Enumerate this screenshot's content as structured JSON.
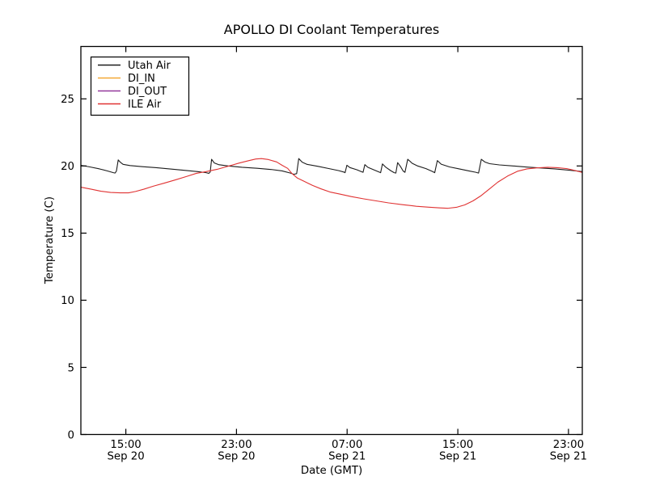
{
  "chart_data": {
    "type": "line",
    "title": "APOLLO DI Coolant Temperatures",
    "xlabel": "Date (GMT)",
    "ylabel": "Temperature (C)",
    "grid": false,
    "legend_position": "upper left",
    "x_unit": "hours since Sep 20 00:00 GMT",
    "xlim": [
      11.75,
      48
    ],
    "ylim": [
      0,
      28.9
    ],
    "y_ticks": [
      0,
      5,
      10,
      15,
      20,
      25
    ],
    "x_ticks": [
      {
        "t": 15,
        "time": "15:00",
        "date": "Sep 20"
      },
      {
        "t": 23,
        "time": "23:00",
        "date": "Sep 20"
      },
      {
        "t": 31,
        "time": "07:00",
        "date": "Sep 21"
      },
      {
        "t": 39,
        "time": "15:00",
        "date": "Sep 21"
      },
      {
        "t": 47,
        "time": "23:00",
        "date": "Sep 21"
      }
    ],
    "series": [
      {
        "name": "Utah Air",
        "color": "#1c1c1c",
        "opacity": 1,
        "points": [
          [
            11.75,
            20.05
          ],
          [
            12.4,
            19.93
          ],
          [
            13.1,
            19.78
          ],
          [
            13.7,
            19.62
          ],
          [
            14.1,
            19.5
          ],
          [
            14.22,
            19.47
          ],
          [
            14.32,
            19.62
          ],
          [
            14.45,
            20.45
          ],
          [
            14.6,
            20.28
          ],
          [
            14.8,
            20.12
          ],
          [
            15.3,
            20.03
          ],
          [
            16.2,
            19.95
          ],
          [
            17.2,
            19.87
          ],
          [
            18.3,
            19.77
          ],
          [
            19.3,
            19.67
          ],
          [
            20.2,
            19.58
          ],
          [
            20.8,
            19.5
          ],
          [
            21.0,
            19.45
          ],
          [
            21.1,
            19.55
          ],
          [
            21.2,
            20.5
          ],
          [
            21.4,
            20.22
          ],
          [
            21.7,
            20.1
          ],
          [
            22.4,
            20.0
          ],
          [
            23.4,
            19.9
          ],
          [
            24.5,
            19.83
          ],
          [
            25.5,
            19.74
          ],
          [
            26.3,
            19.63
          ],
          [
            26.9,
            19.47
          ],
          [
            27.15,
            19.38
          ],
          [
            27.35,
            19.43
          ],
          [
            27.5,
            20.55
          ],
          [
            27.75,
            20.28
          ],
          [
            28.1,
            20.12
          ],
          [
            28.9,
            19.97
          ],
          [
            29.7,
            19.8
          ],
          [
            30.4,
            19.65
          ],
          [
            30.75,
            19.55
          ],
          [
            30.85,
            19.5
          ],
          [
            30.98,
            20.05
          ],
          [
            31.2,
            19.88
          ],
          [
            31.7,
            19.72
          ],
          [
            32.05,
            19.57
          ],
          [
            32.15,
            19.53
          ],
          [
            32.28,
            20.1
          ],
          [
            32.5,
            19.9
          ],
          [
            32.95,
            19.7
          ],
          [
            33.3,
            19.55
          ],
          [
            33.42,
            19.5
          ],
          [
            33.55,
            20.15
          ],
          [
            33.8,
            19.9
          ],
          [
            34.15,
            19.65
          ],
          [
            34.4,
            19.5
          ],
          [
            34.52,
            19.47
          ],
          [
            34.65,
            20.25
          ],
          [
            34.85,
            19.97
          ],
          [
            35.05,
            19.62
          ],
          [
            35.18,
            19.53
          ],
          [
            35.38,
            20.5
          ],
          [
            35.7,
            20.2
          ],
          [
            36.1,
            20.0
          ],
          [
            36.7,
            19.8
          ],
          [
            37.15,
            19.6
          ],
          [
            37.33,
            19.5
          ],
          [
            37.52,
            20.4
          ],
          [
            37.8,
            20.13
          ],
          [
            38.4,
            19.93
          ],
          [
            39.1,
            19.78
          ],
          [
            39.8,
            19.63
          ],
          [
            40.3,
            19.53
          ],
          [
            40.5,
            19.47
          ],
          [
            40.7,
            20.5
          ],
          [
            40.95,
            20.3
          ],
          [
            41.3,
            20.17
          ],
          [
            42.0,
            20.08
          ],
          [
            43.0,
            20.0
          ],
          [
            44.0,
            19.92
          ],
          [
            45.0,
            19.85
          ],
          [
            46.0,
            19.78
          ],
          [
            46.9,
            19.7
          ],
          [
            47.5,
            19.64
          ],
          [
            48.0,
            19.58
          ]
        ]
      },
      {
        "name": "DI_IN",
        "color": "#f4a733",
        "opacity": 0.55,
        "points": [
          [
            11.75,
            0
          ],
          [
            48,
            0
          ]
        ]
      },
      {
        "name": "DI_OUT",
        "color": "#93389b",
        "opacity": 0.55,
        "points": [
          [
            11.75,
            0
          ],
          [
            48,
            0
          ]
        ]
      },
      {
        "name": "ILE Air",
        "color": "#e03232",
        "opacity": 1,
        "points": [
          [
            11.75,
            18.42
          ],
          [
            12.5,
            18.27
          ],
          [
            13.2,
            18.12
          ],
          [
            13.9,
            18.03
          ],
          [
            14.6,
            18.0
          ],
          [
            15.2,
            18.0
          ],
          [
            15.7,
            18.1
          ],
          [
            16.3,
            18.27
          ],
          [
            17.0,
            18.5
          ],
          [
            17.8,
            18.73
          ],
          [
            18.6,
            18.97
          ],
          [
            19.4,
            19.22
          ],
          [
            20.1,
            19.45
          ],
          [
            20.8,
            19.58
          ],
          [
            21.6,
            19.75
          ],
          [
            22.4,
            19.98
          ],
          [
            23.2,
            20.22
          ],
          [
            23.9,
            20.4
          ],
          [
            24.4,
            20.52
          ],
          [
            24.8,
            20.55
          ],
          [
            25.3,
            20.48
          ],
          [
            25.9,
            20.3
          ],
          [
            26.3,
            20.05
          ],
          [
            26.7,
            19.82
          ],
          [
            27.0,
            19.45
          ],
          [
            27.4,
            19.1
          ],
          [
            27.9,
            18.85
          ],
          [
            28.5,
            18.55
          ],
          [
            29.1,
            18.3
          ],
          [
            29.8,
            18.05
          ],
          [
            30.5,
            17.9
          ],
          [
            31.3,
            17.72
          ],
          [
            32.2,
            17.55
          ],
          [
            33.1,
            17.4
          ],
          [
            34.0,
            17.25
          ],
          [
            35.0,
            17.12
          ],
          [
            36.0,
            17.0
          ],
          [
            36.9,
            16.93
          ],
          [
            37.7,
            16.88
          ],
          [
            38.3,
            16.85
          ],
          [
            38.9,
            16.92
          ],
          [
            39.5,
            17.1
          ],
          [
            40.1,
            17.4
          ],
          [
            40.7,
            17.8
          ],
          [
            41.3,
            18.3
          ],
          [
            41.9,
            18.8
          ],
          [
            42.6,
            19.25
          ],
          [
            43.3,
            19.6
          ],
          [
            44.0,
            19.78
          ],
          [
            44.7,
            19.86
          ],
          [
            45.5,
            19.9
          ],
          [
            46.2,
            19.87
          ],
          [
            46.9,
            19.8
          ],
          [
            47.4,
            19.68
          ],
          [
            48.0,
            19.52
          ]
        ]
      }
    ]
  }
}
